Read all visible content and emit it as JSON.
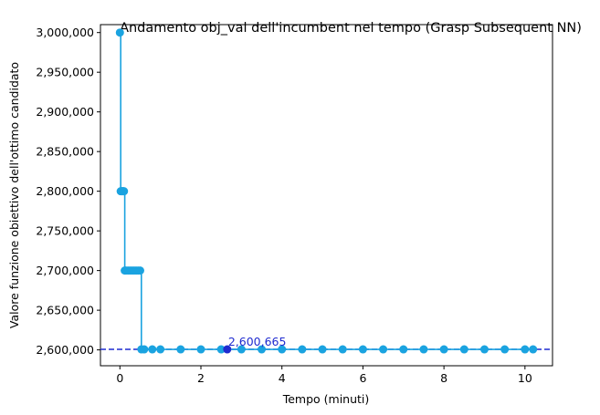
{
  "chart_data": {
    "type": "line",
    "title": "Andamento obj_val dell'incumbent nel tempo (Grasp Subsequent NN)",
    "xlabel": "Tempo (minuti)",
    "ylabel": "Valore funzione obiettivo dell'ottimo candidato",
    "xlim": [
      -0.48,
      10.68
    ],
    "ylim": [
      2580000,
      3010000
    ],
    "x_ticks": [
      0,
      2,
      4,
      6,
      8,
      10
    ],
    "x_tick_labels": [
      "0",
      "2",
      "4",
      "6",
      "8",
      "10"
    ],
    "y_ticks": [
      2600000,
      2650000,
      2700000,
      2750000,
      2800000,
      2850000,
      2900000,
      2950000,
      3000000
    ],
    "y_tick_labels": [
      "2,600,000",
      "2,650,000",
      "2,700,000",
      "2,750,000",
      "2,800,000",
      "2,850,000",
      "2,900,000",
      "2,950,000",
      "3,000,000"
    ],
    "grid": false,
    "legend": "none",
    "series": [
      {
        "color": "#1aa3e0",
        "x": [
          0.0,
          0.02,
          0.04,
          0.06,
          0.08,
          0.1,
          0.12,
          0.15,
          0.2,
          0.25,
          0.3,
          0.35,
          0.4,
          0.45,
          0.5,
          0.53,
          0.6,
          0.8,
          1.0,
          1.5,
          2.0,
          2.5,
          3.0,
          3.5,
          4.0,
          4.5,
          5.0,
          5.5,
          6.0,
          6.5,
          7.0,
          7.5,
          8.0,
          8.5,
          9.0,
          9.5,
          10.0,
          10.2
        ],
        "y": [
          3000000,
          2800000,
          2800000,
          2800000,
          2800000,
          2800000,
          2700000,
          2700000,
          2700000,
          2700000,
          2700000,
          2700000,
          2700000,
          2700000,
          2700000,
          2600665,
          2600665,
          2600665,
          2600665,
          2600665,
          2600665,
          2600665,
          2600665,
          2600665,
          2600665,
          2600665,
          2600665,
          2600665,
          2600665,
          2600665,
          2600665,
          2600665,
          2600665,
          2600665,
          2600665,
          2600665,
          2600665,
          2600665
        ]
      }
    ],
    "best": {
      "x": 2.65,
      "y": 2600665,
      "label": "2,600,665",
      "color": "#1f2bd0",
      "line_style": "dashed"
    }
  }
}
